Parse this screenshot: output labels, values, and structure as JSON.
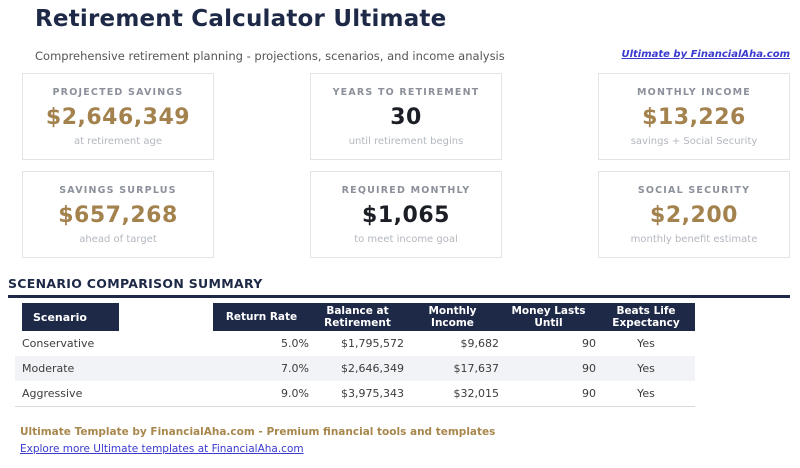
{
  "header": {
    "title": "Retirement Calculator Ultimate",
    "subtitle": "Comprehensive retirement planning - projections, scenarios, and income analysis",
    "link": "Ultimate by FinancialAha.com"
  },
  "cards": [
    {
      "label": "PROJECTED SAVINGS",
      "value": "$2,646,349",
      "sub": "at retirement age"
    },
    {
      "label": "YEARS TO RETIREMENT",
      "value": "30",
      "sub": "until retirement begins"
    },
    {
      "label": "MONTHLY INCOME",
      "value": "$13,226",
      "sub": "savings + Social Security"
    },
    {
      "label": "SAVINGS SURPLUS",
      "value": "$657,268",
      "sub": "ahead of target"
    },
    {
      "label": "REQUIRED MONTHLY",
      "value": "$1,065",
      "sub": "to meet income goal"
    },
    {
      "label": "SOCIAL SECURITY",
      "value": "$2,200",
      "sub": "monthly benefit estimate"
    }
  ],
  "table": {
    "section_title": "SCENARIO COMPARISON SUMMARY",
    "columns": [
      "Scenario",
      "Return Rate",
      "Balance at Retirement",
      "Monthly Income",
      "Money Lasts Until",
      "Beats Life Expectancy"
    ],
    "rows": [
      {
        "scenario": "Conservative",
        "return_rate": "5.0%",
        "balance": "$1,795,572",
        "monthly_income": "$9,682",
        "money_lasts": "90",
        "beats": "Yes"
      },
      {
        "scenario": "Moderate",
        "return_rate": "7.0%",
        "balance": "$2,646,349",
        "monthly_income": "$17,637",
        "money_lasts": "90",
        "beats": "Yes"
      },
      {
        "scenario": "Aggressive",
        "return_rate": "9.0%",
        "balance": "$3,975,343",
        "monthly_income": "$32,015",
        "money_lasts": "90",
        "beats": "Yes"
      }
    ]
  },
  "footer": {
    "tagline": "Ultimate Template by FinancialAha.com - Premium financial tools and templates",
    "link": "Explore more Ultimate templates at FinancialAha.com"
  },
  "colors": {
    "navy": "#1e2947",
    "gold_value": "#a3824e",
    "dark_value": "#1c1e26",
    "link_blue": "#3a3ad0",
    "footer_gold": "#a8874d"
  }
}
